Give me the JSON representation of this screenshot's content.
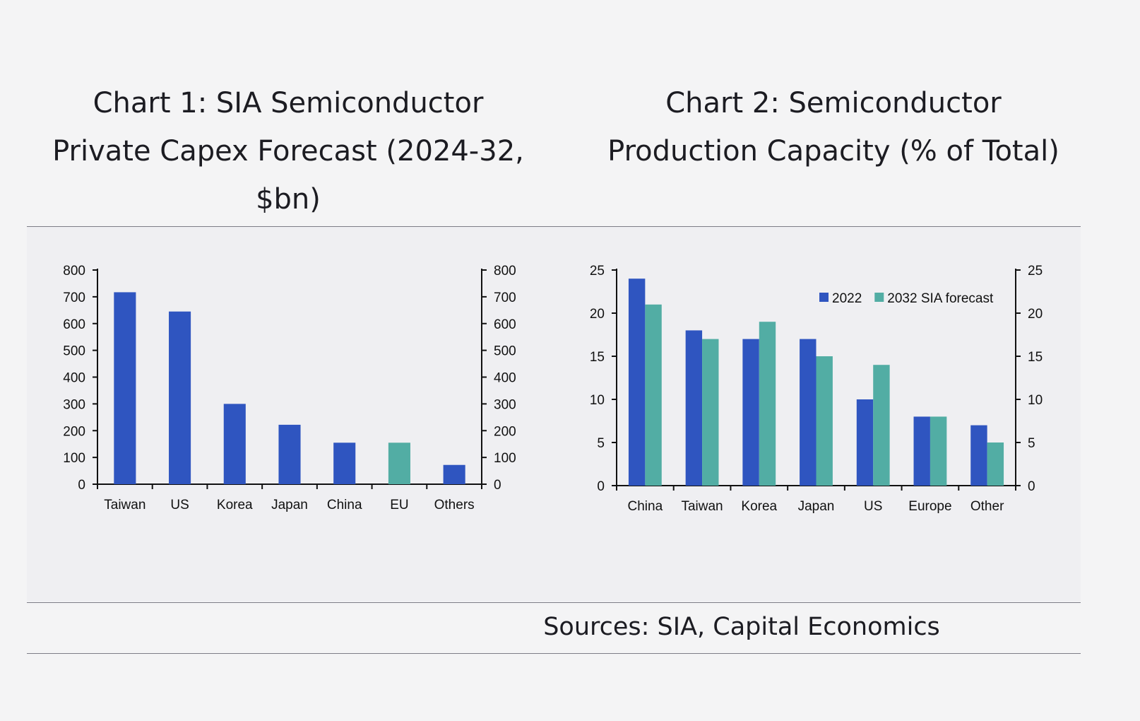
{
  "titles": {
    "chart1_line1": "Chart 1: SIA Semiconductor",
    "chart1_line2": "Private Capex Forecast (2024-32,",
    "chart1_line3": "$bn)",
    "chart2_line1": "Chart 2: Semiconductor",
    "chart2_line2": "Production Capacity (% of Total)"
  },
  "source": "Sources: SIA, Capital Economics",
  "colors": {
    "blue": "#2f55c0",
    "teal": "#52ada4",
    "axis": "#111111"
  },
  "chart_data": [
    {
      "type": "bar",
      "categories": [
        "Taiwan",
        "US",
        "Korea",
        "Japan",
        "China",
        "EU",
        "Others"
      ],
      "values": [
        717,
        645,
        300,
        222,
        155,
        155,
        72
      ],
      "bar_colors": [
        "blue",
        "blue",
        "blue",
        "blue",
        "blue",
        "teal",
        "blue"
      ],
      "ylim": [
        0,
        800
      ],
      "yticks": [
        0,
        100,
        200,
        300,
        400,
        500,
        600,
        700,
        800
      ],
      "dual_y_axis": true
    },
    {
      "type": "bar",
      "categories": [
        "China",
        "Taiwan",
        "Korea",
        "Japan",
        "US",
        "Europe",
        "Other"
      ],
      "series": [
        {
          "name": "2022",
          "values": [
            24,
            18,
            17,
            17,
            10,
            8,
            7
          ],
          "color": "blue"
        },
        {
          "name": "2032 SIA forecast",
          "values": [
            21,
            17,
            19,
            15,
            14,
            8,
            5
          ],
          "color": "teal"
        }
      ],
      "ylim": [
        0,
        25
      ],
      "yticks": [
        0,
        5,
        10,
        15,
        20,
        25
      ],
      "dual_y_axis": true,
      "legend": "top-right"
    }
  ]
}
